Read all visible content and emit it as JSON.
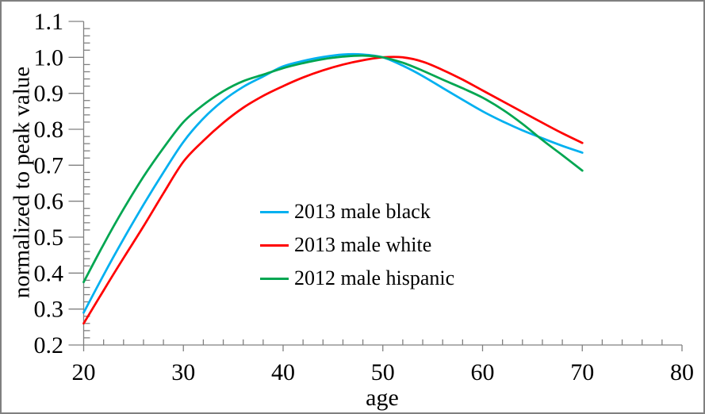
{
  "frame": {
    "border_color": "#808080",
    "background": "#ffffff"
  },
  "chart_data": {
    "type": "line",
    "title": "",
    "xlabel": "age",
    "ylabel": "normalized to peak value",
    "xlim": [
      20,
      80
    ],
    "ylim": [
      0.2,
      1.1
    ],
    "grid": false,
    "legend_position": "inside-center-left",
    "axis_color": "#808080",
    "text_color": "#000000",
    "x_ticks": [
      {
        "v": 20,
        "label": "20"
      },
      {
        "v": 30,
        "label": "30"
      },
      {
        "v": 40,
        "label": "40"
      },
      {
        "v": 50,
        "label": "50"
      },
      {
        "v": 60,
        "label": "60"
      },
      {
        "v": 70,
        "label": "70"
      },
      {
        "v": 80,
        "label": "80"
      }
    ],
    "x_minor_step": 2,
    "y_ticks": [
      {
        "v": 0.2,
        "label": "0.2"
      },
      {
        "v": 0.3,
        "label": "0.3"
      },
      {
        "v": 0.4,
        "label": "0.4"
      },
      {
        "v": 0.5,
        "label": "0.5"
      },
      {
        "v": 0.6,
        "label": "0.6"
      },
      {
        "v": 0.7,
        "label": "0.7"
      },
      {
        "v": 0.8,
        "label": "0.8"
      },
      {
        "v": 0.9,
        "label": "0.9"
      },
      {
        "v": 1.0,
        "label": "1.0"
      },
      {
        "v": 1.1,
        "label": "1.1"
      }
    ],
    "y_minor_step": 0.02,
    "x": [
      20,
      22,
      24,
      26,
      28,
      30,
      32,
      34,
      36,
      38,
      40,
      42,
      44,
      46,
      48,
      50,
      52,
      54,
      56,
      58,
      60,
      62,
      64,
      66,
      68,
      70
    ],
    "series": [
      {
        "name": "2013 male black",
        "color": "#00B0F0",
        "values": [
          0.29,
          0.395,
          0.495,
          0.59,
          0.68,
          0.765,
          0.83,
          0.88,
          0.918,
          0.947,
          0.975,
          0.99,
          1.001,
          1.008,
          1.008,
          1.0,
          0.977,
          0.948,
          0.915,
          0.882,
          0.85,
          0.822,
          0.797,
          0.775,
          0.754,
          0.735
        ]
      },
      {
        "name": "2013 male white",
        "color": "#FF0000",
        "values": [
          0.26,
          0.352,
          0.442,
          0.53,
          0.622,
          0.71,
          0.768,
          0.818,
          0.86,
          0.893,
          0.92,
          0.944,
          0.964,
          0.98,
          0.992,
          1.0,
          1.0,
          0.988,
          0.965,
          0.938,
          0.908,
          0.878,
          0.848,
          0.818,
          0.789,
          0.762
        ]
      },
      {
        "name": "2012 male hispanic",
        "color": "#00A651",
        "values": [
          0.375,
          0.48,
          0.578,
          0.668,
          0.748,
          0.82,
          0.868,
          0.906,
          0.934,
          0.952,
          0.97,
          0.984,
          0.995,
          1.002,
          1.005,
          1.0,
          0.985,
          0.963,
          0.938,
          0.914,
          0.888,
          0.855,
          0.815,
          0.77,
          0.728,
          0.685
        ]
      }
    ]
  }
}
